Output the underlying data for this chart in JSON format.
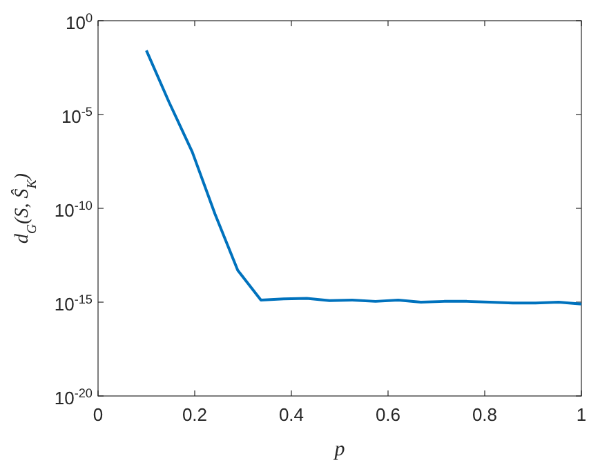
{
  "chart_data": {
    "type": "line",
    "xlabel": "p",
    "ylabel": "d$_{G}$(S, Ŝ$_{K}$)",
    "log": "y",
    "x": [
      0.1,
      0.147,
      0.195,
      0.242,
      0.289,
      0.337,
      0.384,
      0.432,
      0.479,
      0.526,
      0.574,
      0.621,
      0.668,
      0.716,
      0.763,
      0.811,
      0.858,
      0.905,
      0.953,
      1.0
    ],
    "series": [
      {
        "color": "#0072bd",
        "values": [
          0.026,
          4.5e-05,
          1e-07,
          5e-11,
          5e-14,
          1.3e-15,
          1.5e-15,
          1.6e-15,
          1.2e-15,
          1.3e-15,
          1.1e-15,
          1.3e-15,
          1e-15,
          1.1e-15,
          1.1e-15,
          1e-15,
          9e-16,
          9e-16,
          1e-15,
          8e-16
        ]
      }
    ],
    "xlim": [
      0,
      1
    ],
    "xticks": [
      0,
      0.2,
      0.4,
      0.6,
      0.8,
      1
    ],
    "ylim": [
      1e-20,
      1
    ],
    "yticks": [
      {
        "value": 1e-20,
        "label": "10$^{-20}$"
      },
      {
        "value": 1e-15,
        "label": "10$^{-15}$"
      },
      {
        "value": 1e-10,
        "label": "10$^{-10}$"
      },
      {
        "value": 1e-05,
        "label": "10$^{-5}$"
      },
      {
        "value": 1,
        "label": "10$^{0}$"
      }
    ],
    "grid": false,
    "marker": "none",
    "line_style": "solid"
  }
}
